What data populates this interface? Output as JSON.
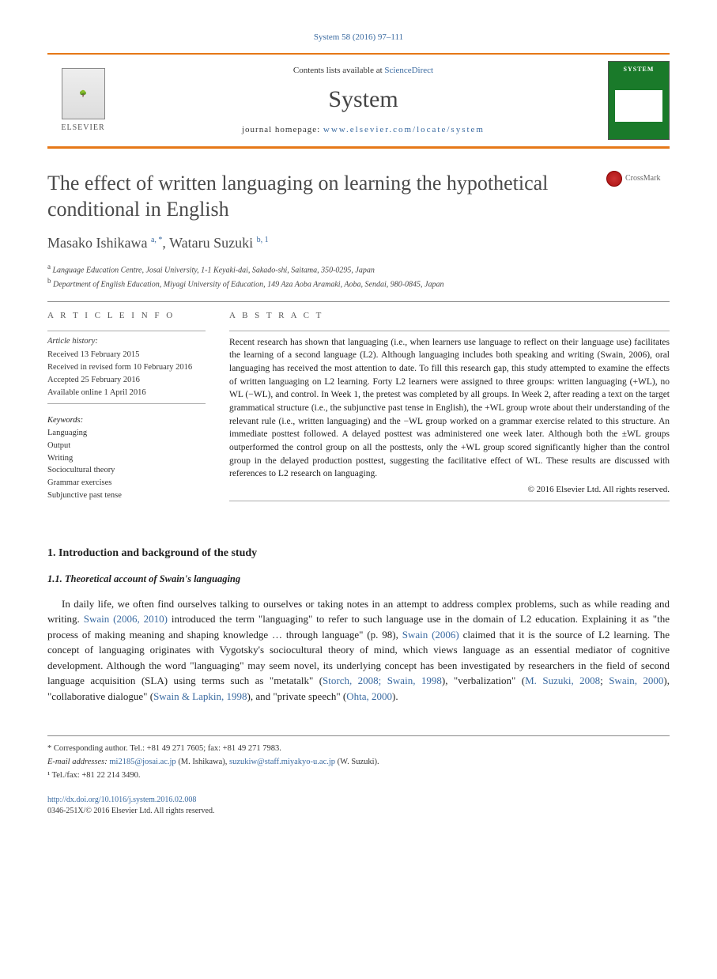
{
  "journalRef": "System 58 (2016) 97–111",
  "header": {
    "contentsPrefix": "Contents lists available at ",
    "contentsLink": "ScienceDirect",
    "journalName": "System",
    "homepagePrefix": "journal homepage: ",
    "homepageUrl": "www.elsevier.com/locate/system",
    "publisher": "ELSEVIER",
    "coverTitle": "SYSTEM"
  },
  "crossmarkLabel": "CrossMark",
  "title": "The effect of written languaging on learning the hypothetical conditional in English",
  "authors": {
    "a1_name": "Masako Ishikawa ",
    "a1_sup": "a, *",
    "sep": ", ",
    "a2_name": "Wataru Suzuki ",
    "a2_sup": "b, 1"
  },
  "affiliations": {
    "a_sup": "a",
    "a_text": " Language Education Centre, Josai University, 1-1 Keyaki-dai, Sakado-shi, Saitama, 350-0295, Japan",
    "b_sup": "b",
    "b_text": " Department of English Education, Miyagi University of Education, 149 Aza Aoba Aramaki, Aoba, Sendai, 980-0845, Japan"
  },
  "infoHeading": "A R T I C L E   I N F O",
  "abstractHeading": "A B S T R A C T",
  "history": {
    "label": "Article history:",
    "l1": "Received 13 February 2015",
    "l2": "Received in revised form 10 February 2016",
    "l3": "Accepted 25 February 2016",
    "l4": "Available online 1 April 2016"
  },
  "keywords": {
    "label": "Keywords:",
    "k1": "Languaging",
    "k2": "Output",
    "k3": "Writing",
    "k4": "Sociocultural theory",
    "k5": "Grammar exercises",
    "k6": "Subjunctive past tense"
  },
  "abstract": "Recent research has shown that languaging (i.e., when learners use language to reflect on their language use) facilitates the learning of a second language (L2). Although languaging includes both speaking and writing (Swain, 2006), oral languaging has received the most attention to date. To fill this research gap, this study attempted to examine the effects of written languaging on L2 learning. Forty L2 learners were assigned to three groups: written languaging (+WL), no WL (−WL), and control. In Week 1, the pretest was completed by all groups. In Week 2, after reading a text on the target grammatical structure (i.e., the subjunctive past tense in English), the +WL group wrote about their understanding of the relevant rule (i.e., written languaging) and the −WL group worked on a grammar exercise related to this structure. An immediate posttest followed. A delayed posttest was administered one week later. Although both the ±WL groups outperformed the control group on all the posttests, only the +WL group scored significantly higher than the control group in the delayed production posttest, suggesting the facilitative effect of WL. These results are discussed with references to L2 research on languaging.",
  "copyright": "© 2016 Elsevier Ltd. All rights reserved.",
  "sec1_heading": "1. Introduction and background of the study",
  "sec11_heading": "1.1. Theoretical account of Swain's languaging",
  "para1": {
    "t1": "In daily life, we often find ourselves talking to ourselves or taking notes in an attempt to address complex problems, such as while reading and writing. ",
    "r1": "Swain (2006, 2010)",
    "t2": " introduced the term \"languaging\" to refer to such language use in the domain of L2 education. Explaining it as \"the process of making meaning and shaping knowledge … through language\" (p. 98), ",
    "r2": "Swain (2006)",
    "t3": " claimed that it is the source of L2 learning. The concept of languaging originates with Vygotsky's sociocultural theory of mind, which views language as an essential mediator of cognitive development. Although the word \"languaging\" may seem novel, its underlying concept has been investigated by researchers in the field of second language acquisition (SLA) using terms such as \"metatalk\" (",
    "r3": "Storch, 2008; Swain, 1998",
    "t4": "), \"verbalization\" (",
    "r4": "M. Suzuki, 2008",
    "t5": "; ",
    "r5": "Swain, 2000",
    "t6": "), \"collaborative dialogue\" (",
    "r6": "Swain & Lapkin, 1998",
    "t7": "), and \"private speech\" (",
    "r7": "Ohta, 2000",
    "t8": ")."
  },
  "footnotes": {
    "corr": "* Corresponding author. Tel.: +81 49 271 7605; fax: +81 49 271 7983.",
    "email_label": "E-mail addresses: ",
    "email1": "mi2185@josai.ac.jp",
    "email1_who": " (M. Ishikawa), ",
    "email2": "suzukiw@staff.miyakyo-u.ac.jp",
    "email2_who": " (W. Suzuki).",
    "n1": "¹ Tel./fax: +81 22 214 3490."
  },
  "footer": {
    "doi": "http://dx.doi.org/10.1016/j.system.2016.02.008",
    "issn": "0346-251X/© 2016 Elsevier Ltd. All rights reserved."
  }
}
